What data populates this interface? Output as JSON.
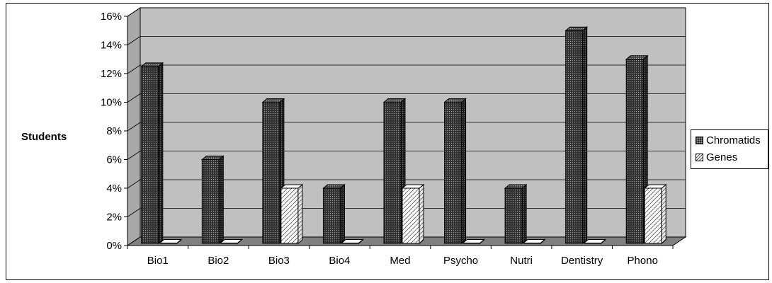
{
  "chart_data": {
    "type": "bar",
    "ylabel": "Students",
    "categories": [
      "Bio1",
      "Bio2",
      "Bio3",
      "Bio4",
      "Med",
      "Psycho",
      "Nutri",
      "Dentistry",
      "Phono"
    ],
    "series": [
      {
        "name": "Chromatids",
        "values": [
          12.5,
          6,
          10,
          4,
          10,
          10,
          4,
          15,
          13
        ],
        "color": "#2b2b2b"
      },
      {
        "name": "Genes",
        "values": [
          0,
          0,
          4,
          0,
          4,
          0,
          0,
          0,
          4
        ],
        "color": "#ffffff"
      }
    ],
    "y_ticks": [
      "0%",
      "2%",
      "4%",
      "6%",
      "8%",
      "10%",
      "12%",
      "14%",
      "16%"
    ],
    "ylim": [
      0,
      16
    ],
    "grid": true,
    "legend_position": "right",
    "wall_color": "#c0c0c0",
    "floor_color": "#808080"
  }
}
